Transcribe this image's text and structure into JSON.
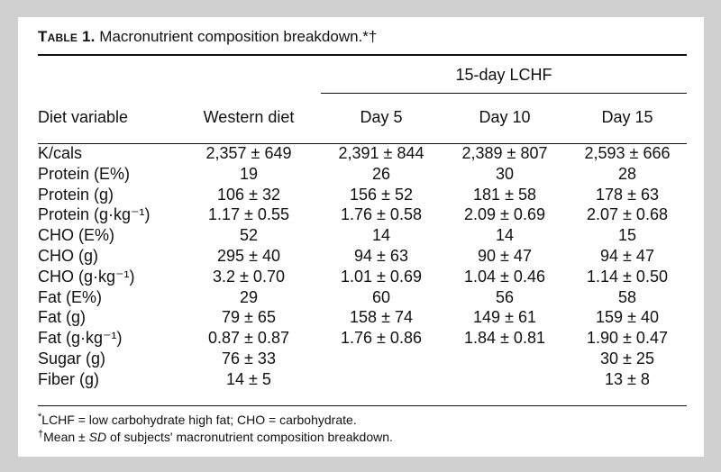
{
  "table": {
    "label": "Table 1.",
    "title": "Macronutrient composition breakdown.*†",
    "group_header": "15-day LCHF",
    "columns": [
      "Diet variable",
      "Western diet",
      "Day 5",
      "Day 10",
      "Day 15"
    ],
    "rows": [
      {
        "var": "K/cals",
        "cells": [
          "2,357 ± 649",
          "2,391 ± 844",
          "2,389 ± 807",
          "2,593 ± 666"
        ]
      },
      {
        "var": "Protein (E%)",
        "cells": [
          "19",
          "26",
          "30",
          "28"
        ]
      },
      {
        "var": "Protein (g)",
        "cells": [
          "106 ± 32",
          "156 ± 52",
          "181 ± 58",
          "178 ± 63"
        ]
      },
      {
        "var": "Protein (g·kg⁻¹)",
        "cells": [
          "1.17 ± 0.55",
          "1.76 ± 0.58",
          "2.09 ± 0.69",
          "2.07 ± 0.68"
        ]
      },
      {
        "var": "CHO (E%)",
        "cells": [
          "52",
          "14",
          "14",
          "15"
        ]
      },
      {
        "var": "CHO (g)",
        "cells": [
          "295 ± 40",
          "94 ± 63",
          "90 ± 47",
          "94 ± 47"
        ]
      },
      {
        "var": "CHO (g·kg⁻¹)",
        "cells": [
          "3.2 ± 0.70",
          "1.01 ± 0.69",
          "1.04 ± 0.46",
          "1.14 ± 0.50"
        ]
      },
      {
        "var": "Fat (E%)",
        "cells": [
          "29",
          "60",
          "56",
          "58"
        ]
      },
      {
        "var": "Fat (g)",
        "cells": [
          "79 ± 65",
          "158 ± 74",
          "149 ± 61",
          "159 ± 40"
        ]
      },
      {
        "var": "Fat (g·kg⁻¹)",
        "cells": [
          "0.87 ± 0.87",
          "1.76 ± 0.86",
          "1.84 ± 0.81",
          "1.90 ± 0.47"
        ]
      },
      {
        "var": "Sugar (g)",
        "cells": [
          "76 ± 33",
          "",
          "",
          "30 ± 25"
        ]
      },
      {
        "var": "Fiber (g)",
        "cells": [
          "14 ± 5",
          "",
          "",
          "13 ± 8"
        ]
      }
    ],
    "footnotes": {
      "note1_symbol": "*",
      "note1_text": "LCHF = low carbohydrate high fat; CHO = carbohydrate.",
      "note2_symbol": "†",
      "note2_pre": "Mean ± ",
      "note2_sd": "SD",
      "note2_post": " of subjects' macronutrient composition breakdown."
    }
  }
}
